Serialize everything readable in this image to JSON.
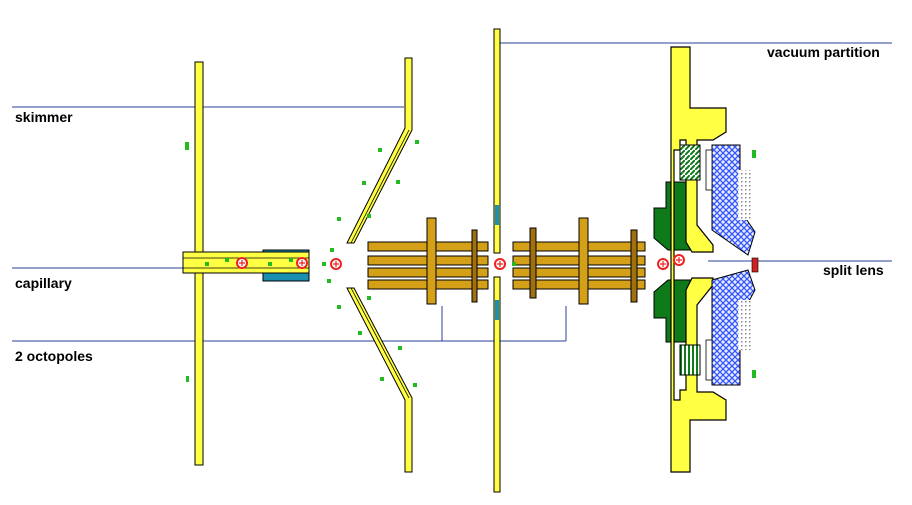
{
  "labels": {
    "skimmer": "skimmer",
    "capillary": "capillary",
    "octopoles": "2 octopoles",
    "vacuum_partition": "vacuum partition",
    "split_lens": "split lens"
  },
  "colors": {
    "electrode_yellow": "#ffff44",
    "rod_tan": "#d4a017",
    "rod_brown": "#a0700f",
    "lens_green": "#0f7a1a",
    "mesh_blue": "#3355ff",
    "line_blue": "#2b3f9a",
    "ion_red": "#ee2222",
    "droplet_green": "#22bb22",
    "capillary_blue": "#1a8fb0",
    "outline": "#000000"
  }
}
